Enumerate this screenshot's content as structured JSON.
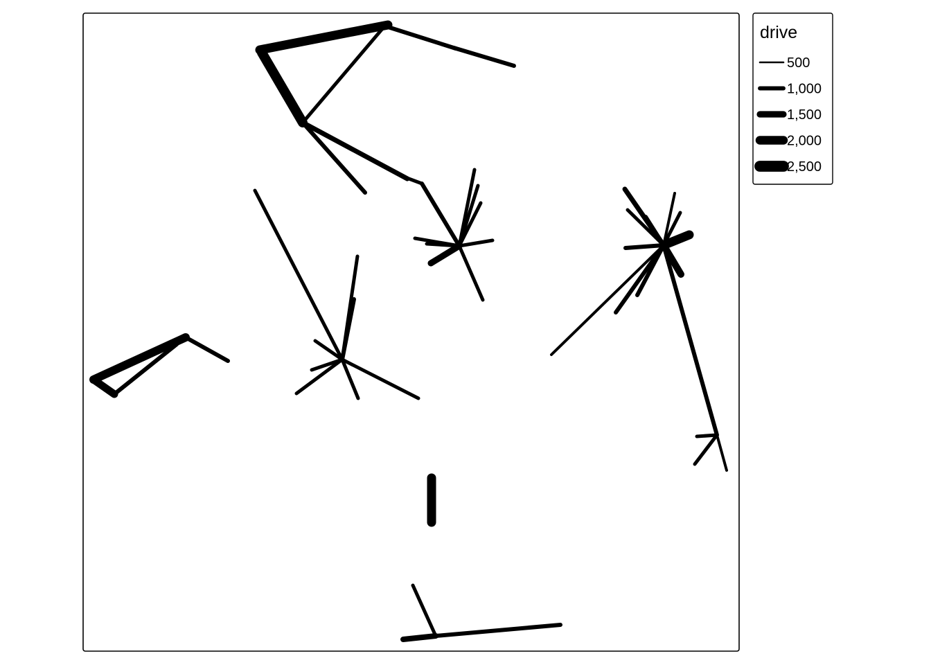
{
  "legend": {
    "title": "drive",
    "entries": [
      {
        "label": "500",
        "value": 500
      },
      {
        "label": "1,000",
        "value": 1000
      },
      {
        "label": "1,500",
        "value": 1500
      },
      {
        "label": "2,000",
        "value": 2000
      },
      {
        "label": "2,500",
        "value": 2500
      }
    ]
  },
  "colors": {
    "line": "#000000",
    "frame": "#000000",
    "background": "#ffffff"
  }
}
